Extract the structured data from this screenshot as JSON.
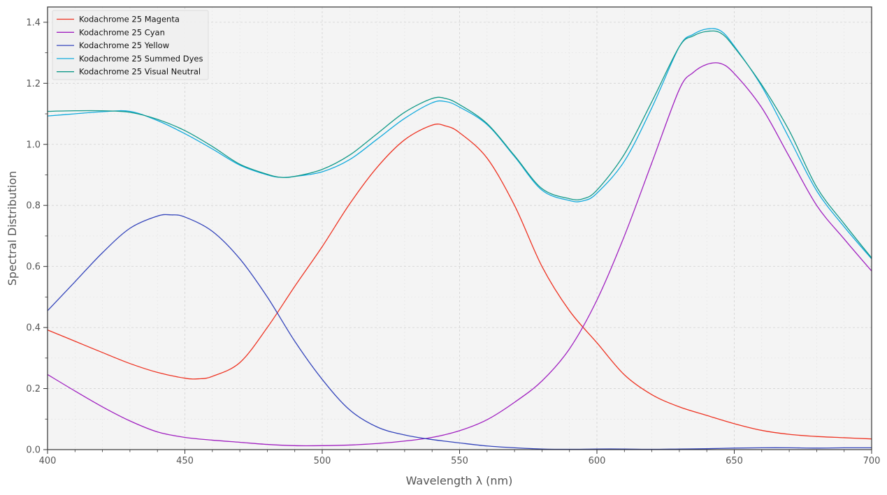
{
  "chart_data": {
    "type": "line",
    "title": "",
    "xlabel": "Wavelength λ (nm)",
    "ylabel": "Spectral Distribution",
    "xlim": [
      400,
      700
    ],
    "ylim": [
      0,
      1.45
    ],
    "x_ticks": [
      400,
      450,
      500,
      550,
      600,
      650,
      700
    ],
    "y_ticks": [
      0.0,
      0.2,
      0.4,
      0.6,
      0.8,
      1.0,
      1.2,
      1.4
    ],
    "x_tick_labels": [
      "400",
      "450",
      "500",
      "550",
      "600",
      "650",
      "700"
    ],
    "y_tick_labels": [
      "0.0",
      "0.2",
      "0.4",
      "0.6",
      "0.8",
      "1.0",
      "1.2",
      "1.4"
    ],
    "grid": true,
    "legend_position": "top-left",
    "background_color": "#f4f4f4",
    "series": [
      {
        "name": "Kodachrome 25 Magenta",
        "color": "#ee3322",
        "points": [
          [
            400,
            0.392
          ],
          [
            410,
            0.355
          ],
          [
            420,
            0.318
          ],
          [
            430,
            0.282
          ],
          [
            440,
            0.253
          ],
          [
            450,
            0.234
          ],
          [
            455,
            0.232
          ],
          [
            460,
            0.24
          ],
          [
            470,
            0.285
          ],
          [
            480,
            0.4
          ],
          [
            490,
            0.535
          ],
          [
            500,
            0.665
          ],
          [
            510,
            0.805
          ],
          [
            520,
            0.925
          ],
          [
            530,
            1.015
          ],
          [
            540,
            1.063
          ],
          [
            545,
            1.06
          ],
          [
            550,
            1.038
          ],
          [
            560,
            0.955
          ],
          [
            570,
            0.8
          ],
          [
            580,
            0.6
          ],
          [
            590,
            0.455
          ],
          [
            600,
            0.35
          ],
          [
            610,
            0.245
          ],
          [
            620,
            0.18
          ],
          [
            630,
            0.14
          ],
          [
            640,
            0.112
          ],
          [
            650,
            0.085
          ],
          [
            660,
            0.063
          ],
          [
            670,
            0.05
          ],
          [
            680,
            0.043
          ],
          [
            690,
            0.039
          ],
          [
            700,
            0.035
          ]
        ]
      },
      {
        "name": "Kodachrome 25 Cyan",
        "color": "#a020c0",
        "points": [
          [
            400,
            0.246
          ],
          [
            410,
            0.192
          ],
          [
            420,
            0.14
          ],
          [
            430,
            0.094
          ],
          [
            440,
            0.058
          ],
          [
            450,
            0.04
          ],
          [
            460,
            0.031
          ],
          [
            470,
            0.024
          ],
          [
            480,
            0.017
          ],
          [
            490,
            0.013
          ],
          [
            500,
            0.013
          ],
          [
            510,
            0.015
          ],
          [
            520,
            0.02
          ],
          [
            530,
            0.028
          ],
          [
            540,
            0.04
          ],
          [
            550,
            0.062
          ],
          [
            560,
            0.098
          ],
          [
            570,
            0.155
          ],
          [
            580,
            0.225
          ],
          [
            590,
            0.33
          ],
          [
            600,
            0.49
          ],
          [
            610,
            0.7
          ],
          [
            620,
            0.94
          ],
          [
            630,
            1.18
          ],
          [
            635,
            1.235
          ],
          [
            640,
            1.262
          ],
          [
            645,
            1.265
          ],
          [
            650,
            1.232
          ],
          [
            660,
            1.12
          ],
          [
            670,
            0.96
          ],
          [
            680,
            0.8
          ],
          [
            690,
            0.69
          ],
          [
            700,
            0.585
          ]
        ]
      },
      {
        "name": "Kodachrome 25 Yellow",
        "color": "#3344bb",
        "points": [
          [
            400,
            0.455
          ],
          [
            410,
            0.55
          ],
          [
            420,
            0.645
          ],
          [
            430,
            0.725
          ],
          [
            440,
            0.765
          ],
          [
            445,
            0.769
          ],
          [
            450,
            0.762
          ],
          [
            460,
            0.715
          ],
          [
            470,
            0.625
          ],
          [
            480,
            0.5
          ],
          [
            490,
            0.355
          ],
          [
            500,
            0.23
          ],
          [
            510,
            0.13
          ],
          [
            520,
            0.074
          ],
          [
            530,
            0.048
          ],
          [
            540,
            0.033
          ],
          [
            550,
            0.022
          ],
          [
            560,
            0.012
          ],
          [
            570,
            0.006
          ],
          [
            580,
            0.002
          ],
          [
            590,
            0.001
          ],
          [
            600,
            0.002
          ],
          [
            610,
            0.002
          ],
          [
            620,
            0.001
          ],
          [
            630,
            0.002
          ],
          [
            640,
            0.003
          ],
          [
            650,
            0.005
          ],
          [
            660,
            0.006
          ],
          [
            670,
            0.006
          ],
          [
            680,
            0.005
          ],
          [
            690,
            0.006
          ],
          [
            700,
            0.006
          ]
        ]
      },
      {
        "name": "Kodachrome 25 Summed Dyes",
        "color": "#11aadd",
        "points": [
          [
            400,
            1.093
          ],
          [
            410,
            1.1
          ],
          [
            420,
            1.107
          ],
          [
            430,
            1.108
          ],
          [
            440,
            1.078
          ],
          [
            450,
            1.035
          ],
          [
            460,
            0.985
          ],
          [
            470,
            0.932
          ],
          [
            480,
            0.9
          ],
          [
            485,
            0.892
          ],
          [
            490,
            0.895
          ],
          [
            500,
            0.91
          ],
          [
            510,
            0.95
          ],
          [
            520,
            1.017
          ],
          [
            530,
            1.085
          ],
          [
            540,
            1.136
          ],
          [
            545,
            1.14
          ],
          [
            550,
            1.122
          ],
          [
            560,
            1.065
          ],
          [
            570,
            0.96
          ],
          [
            580,
            0.85
          ],
          [
            590,
            0.816
          ],
          [
            595,
            0.815
          ],
          [
            600,
            0.84
          ],
          [
            610,
            0.945
          ],
          [
            620,
            1.12
          ],
          [
            630,
            1.32
          ],
          [
            635,
            1.36
          ],
          [
            640,
            1.378
          ],
          [
            645,
            1.372
          ],
          [
            650,
            1.322
          ],
          [
            660,
            1.19
          ],
          [
            670,
            1.02
          ],
          [
            680,
            0.848
          ],
          [
            690,
            0.73
          ],
          [
            700,
            0.625
          ]
        ]
      },
      {
        "name": "Kodachrome 25 Visual Neutral",
        "color": "#119988",
        "points": [
          [
            400,
            1.108
          ],
          [
            410,
            1.11
          ],
          [
            420,
            1.11
          ],
          [
            430,
            1.105
          ],
          [
            440,
            1.082
          ],
          [
            450,
            1.045
          ],
          [
            460,
            0.993
          ],
          [
            470,
            0.935
          ],
          [
            480,
            0.902
          ],
          [
            485,
            0.892
          ],
          [
            490,
            0.895
          ],
          [
            500,
            0.918
          ],
          [
            510,
            0.965
          ],
          [
            520,
            1.035
          ],
          [
            530,
            1.105
          ],
          [
            540,
            1.15
          ],
          [
            545,
            1.15
          ],
          [
            550,
            1.13
          ],
          [
            560,
            1.068
          ],
          [
            570,
            0.963
          ],
          [
            580,
            0.855
          ],
          [
            590,
            0.822
          ],
          [
            595,
            0.822
          ],
          [
            600,
            0.85
          ],
          [
            610,
            0.968
          ],
          [
            620,
            1.14
          ],
          [
            630,
            1.32
          ],
          [
            635,
            1.355
          ],
          [
            640,
            1.37
          ],
          [
            645,
            1.365
          ],
          [
            650,
            1.318
          ],
          [
            660,
            1.195
          ],
          [
            670,
            1.045
          ],
          [
            680,
            0.86
          ],
          [
            690,
            0.74
          ],
          [
            700,
            0.628
          ]
        ]
      }
    ]
  }
}
